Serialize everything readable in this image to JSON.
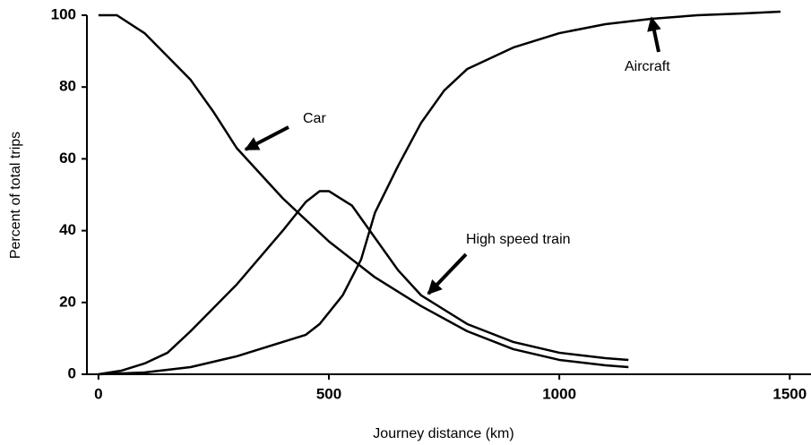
{
  "chart_data": {
    "type": "line",
    "x_label": "Journey distance (km)",
    "y_label": "Percent of total trips",
    "xlim": [
      -25,
      1550
    ],
    "ylim": [
      0,
      100
    ],
    "xticks": [
      0,
      500,
      1000,
      1500
    ],
    "yticks": [
      0,
      20,
      40,
      60,
      80,
      100
    ],
    "series": [
      {
        "name": "Car",
        "color": "#000000",
        "x": [
          0,
          40,
          100,
          200,
          250,
          300,
          400,
          500,
          600,
          700,
          800,
          900,
          1000,
          1100,
          1150
        ],
        "values": [
          100,
          100,
          95,
          82,
          73,
          63,
          49,
          37,
          27,
          19,
          12,
          7,
          4,
          2.5,
          2
        ]
      },
      {
        "name": "High speed train",
        "color": "#000000",
        "x": [
          0,
          50,
          100,
          150,
          200,
          300,
          400,
          450,
          480,
          500,
          550,
          600,
          650,
          700,
          800,
          900,
          1000,
          1100,
          1150
        ],
        "values": [
          0,
          1,
          3,
          6,
          12,
          25,
          40,
          48,
          51,
          51,
          47,
          38,
          29,
          22,
          14,
          9,
          6,
          4.5,
          4
        ]
      },
      {
        "name": "Aircraft",
        "color": "#000000",
        "x": [
          0,
          100,
          200,
          300,
          400,
          450,
          480,
          530,
          570,
          600,
          650,
          700,
          750,
          800,
          900,
          1000,
          1100,
          1200,
          1300,
          1400,
          1480
        ],
        "values": [
          0,
          0.5,
          2,
          5,
          9,
          11,
          14,
          22,
          32,
          45,
          58,
          70,
          79,
          85,
          91,
          95,
          97.5,
          99,
          100,
          100.5,
          101
        ]
      }
    ]
  }
}
